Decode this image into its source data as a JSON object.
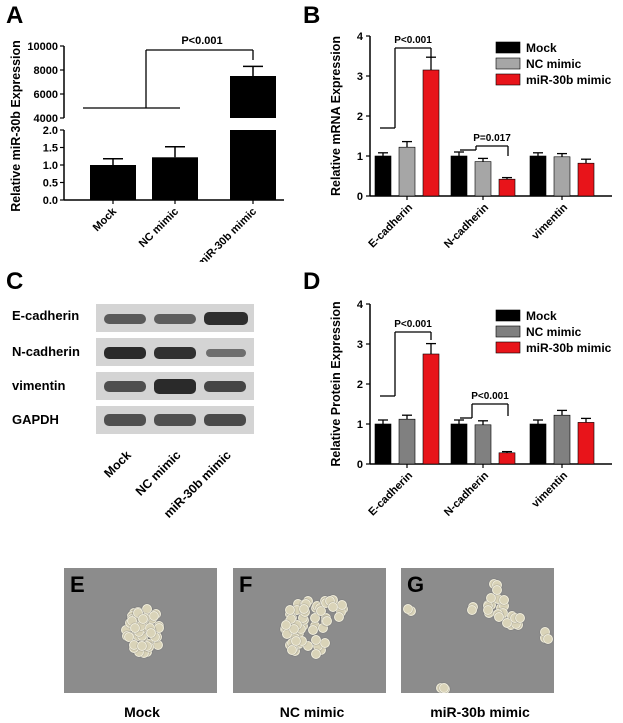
{
  "panels": {
    "A": "A",
    "B": "B",
    "C": "C",
    "D": "D",
    "E": "E",
    "F": "F",
    "G": "G"
  },
  "chart_data": [
    {
      "type": "bar",
      "panel": "A",
      "categories": [
        "Mock",
        "NC mimic",
        "miR-30b mimic"
      ],
      "values": [
        1.0,
        1.22,
        7500
      ],
      "errors": [
        0.18,
        0.3,
        800
      ],
      "ylabel": "Relative miR-30b Expression",
      "ylim_lower": [
        0,
        2
      ],
      "ylim_upper": [
        4000,
        10000
      ],
      "yticks_lower": [
        "0.0",
        "0.5",
        "1.0",
        "1.5",
        "2.0"
      ],
      "yticks_upper": [
        "4000",
        "6000",
        "8000",
        "10000"
      ],
      "axis_break": true,
      "colors": [
        "#000000",
        "#000000",
        "#000000"
      ],
      "annotation": "P<0.001"
    },
    {
      "type": "bar",
      "panel": "B",
      "categories": [
        "E-cadherin",
        "N-cadherin",
        "vimentin"
      ],
      "series": [
        {
          "name": "Mock",
          "values": [
            1.0,
            1.0,
            1.0
          ],
          "errors": [
            0.08,
            0.1,
            0.08
          ],
          "color": "#000000"
        },
        {
          "name": "NC mimic",
          "values": [
            1.22,
            0.86,
            0.98
          ],
          "errors": [
            0.14,
            0.08,
            0.08
          ],
          "color": "#a6a6a6"
        },
        {
          "name": "miR-30b mimic",
          "values": [
            3.15,
            0.42,
            0.82
          ],
          "errors": [
            0.32,
            0.04,
            0.1
          ],
          "color": "#e8141a"
        }
      ],
      "ylabel": "Relative mRNA Expression",
      "ylim": [
        0,
        4
      ],
      "yticks": [
        "0",
        "1",
        "2",
        "3",
        "4"
      ],
      "annotations": [
        "P<0.001",
        "P=0.017"
      ],
      "legend": "top-right"
    },
    {
      "type": "bar",
      "panel": "D",
      "categories": [
        "E-cadherin",
        "N-cadherin",
        "vimentin"
      ],
      "series": [
        {
          "name": "Mock",
          "values": [
            1.0,
            1.0,
            1.0
          ],
          "errors": [
            0.1,
            0.1,
            0.1
          ],
          "color": "#000000"
        },
        {
          "name": "NC mimic",
          "values": [
            1.12,
            0.98,
            1.22
          ],
          "errors": [
            0.1,
            0.1,
            0.12
          ],
          "color": "#808080"
        },
        {
          "name": "miR-30b mimic",
          "values": [
            2.75,
            0.28,
            1.04
          ],
          "errors": [
            0.26,
            0.03,
            0.1
          ],
          "color": "#e8141a"
        }
      ],
      "ylabel": "Relative Protein Expression",
      "ylim": [
        0,
        4
      ],
      "yticks": [
        "0",
        "1",
        "2",
        "3",
        "4"
      ],
      "annotations": [
        "P<0.001",
        "P<0.001"
      ],
      "legend": "top-right"
    }
  ],
  "western_blot": {
    "rows": [
      "E-cadherin",
      "N-cadherin",
      "vimentin",
      "GAPDH"
    ],
    "columns": [
      "Mock",
      "NC mimic",
      "miR-30b mimic"
    ]
  },
  "micrographs": {
    "captions": [
      "Mock",
      "NC mimic",
      "miR-30b mimic"
    ]
  }
}
